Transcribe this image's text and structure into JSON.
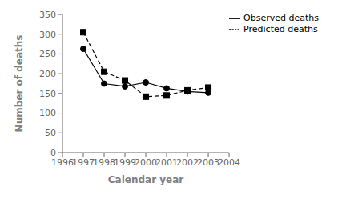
{
  "chart_data": {
    "type": "line",
    "x": [
      1997,
      1998,
      1999,
      2000,
      2001,
      2002,
      2003
    ],
    "series": [
      {
        "name": "Observed deaths",
        "color": "black",
        "values": [
          263,
          175,
          168,
          178,
          163,
          155,
          152
        ],
        "marker": "circle",
        "line_style": "solid"
      },
      {
        "name": "Predicted deaths",
        "color": "black",
        "values": [
          305,
          205,
          183,
          142,
          145,
          158,
          165
        ],
        "marker": "square",
        "line_style": "dashed"
      }
    ],
    "xlabel": "Calendar year",
    "ylabel": "Number of deaths",
    "xlim": [
      1996,
      2004
    ],
    "ylim": [
      0,
      350
    ],
    "xticks": [
      1996,
      1997,
      1998,
      1999,
      2000,
      2001,
      2002,
      2003,
      2004
    ],
    "yticks": [
      0,
      50,
      100,
      150,
      200,
      250,
      300,
      350
    ],
    "legend": "upper right",
    "grid": false
  }
}
